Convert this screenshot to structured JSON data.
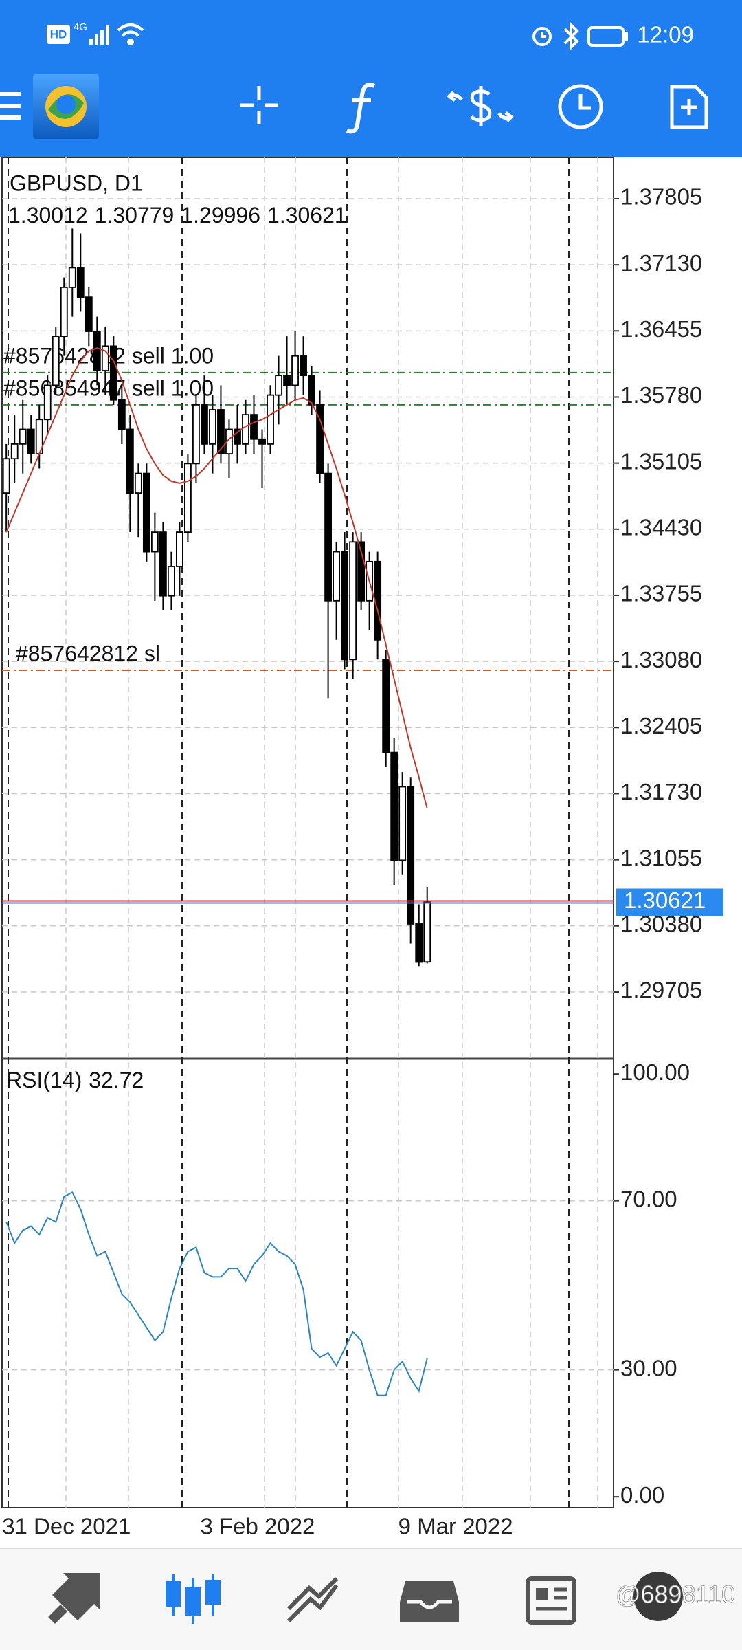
{
  "status_bar": {
    "hd": "HD",
    "network": "4G",
    "time": "12:09"
  },
  "watermark": "@6898110",
  "chart_data": [
    {
      "type": "candlestick",
      "title": "GBPUSD, D1",
      "categories": [
        "31 Dec 2021",
        null,
        null,
        null,
        null,
        null,
        null,
        null,
        null,
        null,
        null,
        null,
        null,
        null,
        null,
        null,
        null,
        null,
        null,
        null,
        null,
        null,
        null,
        null,
        "3 Feb 2022",
        null,
        null,
        null,
        null,
        null,
        null,
        null,
        null,
        null,
        null,
        null,
        null,
        null,
        null,
        null,
        null,
        null,
        null,
        null,
        null,
        null,
        null,
        null,
        "9 Mar 2022",
        null,
        null,
        null
      ],
      "open": [
        1.348,
        1.3515,
        1.353,
        1.3545,
        1.352,
        1.3555,
        1.359,
        1.364,
        1.369,
        1.371,
        1.368,
        1.3645,
        1.3605,
        1.363,
        1.3575,
        1.3545,
        1.348,
        1.35,
        1.342,
        1.344,
        1.3375,
        1.3405,
        1.344,
        1.351,
        1.357,
        1.353,
        1.3565,
        1.352,
        1.3545,
        1.353,
        1.356,
        1.3535,
        1.353,
        1.358,
        1.36,
        1.359,
        1.362,
        1.36,
        1.357,
        1.35,
        1.337,
        1.342,
        1.331,
        1.343,
        1.337,
        1.341,
        1.331,
        1.3215,
        1.3105,
        1.318,
        1.304,
        1.30012
      ],
      "high": [
        1.353,
        1.356,
        1.3575,
        1.356,
        1.357,
        1.36,
        1.365,
        1.37,
        1.375,
        1.3745,
        1.369,
        1.366,
        1.365,
        1.364,
        1.359,
        1.356,
        1.351,
        1.351,
        1.346,
        1.345,
        1.342,
        1.345,
        1.352,
        1.358,
        1.36,
        1.358,
        1.359,
        1.3555,
        1.357,
        1.3575,
        1.358,
        1.3545,
        1.359,
        1.362,
        1.364,
        1.3645,
        1.364,
        1.361,
        1.3585,
        1.351,
        1.343,
        1.344,
        1.344,
        1.344,
        1.342,
        1.342,
        1.332,
        1.323,
        1.3195,
        1.319,
        1.306,
        1.30779
      ],
      "low": [
        1.344,
        1.349,
        1.35,
        1.351,
        1.3505,
        1.354,
        1.358,
        1.362,
        1.366,
        1.3665,
        1.363,
        1.359,
        1.358,
        1.357,
        1.353,
        1.344,
        1.3435,
        1.341,
        1.337,
        1.336,
        1.336,
        1.3375,
        1.343,
        1.349,
        1.352,
        1.35,
        1.351,
        1.3495,
        1.351,
        1.352,
        1.352,
        1.3485,
        1.352,
        1.355,
        1.357,
        1.3575,
        1.358,
        1.356,
        1.349,
        1.327,
        1.333,
        1.33,
        1.329,
        1.336,
        1.334,
        1.331,
        1.32,
        1.308,
        1.309,
        1.302,
        1.2997,
        1.29996
      ],
      "close": [
        1.3515,
        1.353,
        1.3545,
        1.352,
        1.3555,
        1.359,
        1.364,
        1.369,
        1.371,
        1.368,
        1.3645,
        1.3605,
        1.363,
        1.3575,
        1.3545,
        1.348,
        1.35,
        1.342,
        1.344,
        1.3375,
        1.3405,
        1.344,
        1.351,
        1.357,
        1.353,
        1.3565,
        1.352,
        1.3545,
        1.353,
        1.356,
        1.3535,
        1.353,
        1.358,
        1.36,
        1.359,
        1.362,
        1.36,
        1.357,
        1.35,
        1.337,
        1.342,
        1.331,
        1.343,
        1.337,
        1.341,
        1.333,
        1.3215,
        1.3105,
        1.318,
        1.304,
        1.3001,
        1.30621
      ],
      "up_color": "#ffffff",
      "down_color": "#000000",
      "ma": {
        "color": "#c0392b",
        "values": [
          1.344,
          1.346,
          1.348,
          1.35,
          1.352,
          1.354,
          1.356,
          1.358,
          1.36,
          1.3615,
          1.3625,
          1.3628,
          1.3625,
          1.3615,
          1.3595,
          1.357,
          1.3545,
          1.3525,
          1.351,
          1.3498,
          1.3492,
          1.349,
          1.3492,
          1.3497,
          1.3505,
          1.3515,
          1.3525,
          1.3535,
          1.3542,
          1.3548,
          1.3552,
          1.3555,
          1.356,
          1.3565,
          1.357,
          1.3575,
          1.3577,
          1.3572,
          1.3555,
          1.353,
          1.3505,
          1.3478,
          1.345,
          1.342,
          1.339,
          1.336,
          1.3325,
          1.329,
          1.3255,
          1.322,
          1.319,
          1.3158
        ]
      },
      "levels": [
        {
          "label": "#857642812 sell 1.00",
          "value": 1.3603,
          "color": "#2e7d32"
        },
        {
          "label": "#856854947 sell 1.00",
          "value": 1.357,
          "color": "#2e7d32"
        },
        {
          "label": "#857642812 sl",
          "value": 1.3299,
          "color": "#e0541e"
        }
      ],
      "bid_color": "#d32f2f",
      "bid_label_color": "#2a8af0",
      "ylim": [
        1.29024,
        1.38226
      ],
      "yticks": [
        1.37805,
        {
          "value": 1.3713,
          "label": "1.37130"
        },
        1.36455,
        {
          "value": 1.3578,
          "label": "1.35780"
        },
        1.35105,
        {
          "value": 1.3443,
          "label": "1.34430"
        },
        1.33755,
        {
          "value": 1.3308,
          "label": "1.33080"
        },
        1.32405,
        {
          "value": 1.3173,
          "label": "1.31730"
        },
        1.31055,
        {
          "value": 1.3038,
          "label": "1.30380"
        },
        1.29705
      ],
      "grid": true
    },
    {
      "type": "line",
      "title": "RSI(14)",
      "color": "#2e86c1",
      "values": [
        65,
        60,
        63,
        64,
        62,
        66,
        65,
        71,
        72,
        68,
        62,
        57,
        58,
        53,
        48,
        46,
        43,
        40,
        37,
        39,
        47,
        54,
        58,
        59,
        53,
        52,
        52,
        54,
        54,
        51,
        55,
        57,
        60,
        58,
        57,
        55,
        49,
        35,
        33,
        34,
        31,
        35,
        39,
        37,
        30,
        24,
        24,
        30,
        32,
        28,
        25,
        32.72
      ],
      "ylim": [
        -2.9,
        103.6
      ],
      "yticks": [
        {
          "value": 100,
          "label": "100.00"
        },
        {
          "value": 70,
          "label": "70.00"
        },
        {
          "value": 30,
          "label": "30.00"
        },
        {
          "value": 0,
          "label": "0.00"
        }
      ],
      "grid": true
    }
  ]
}
